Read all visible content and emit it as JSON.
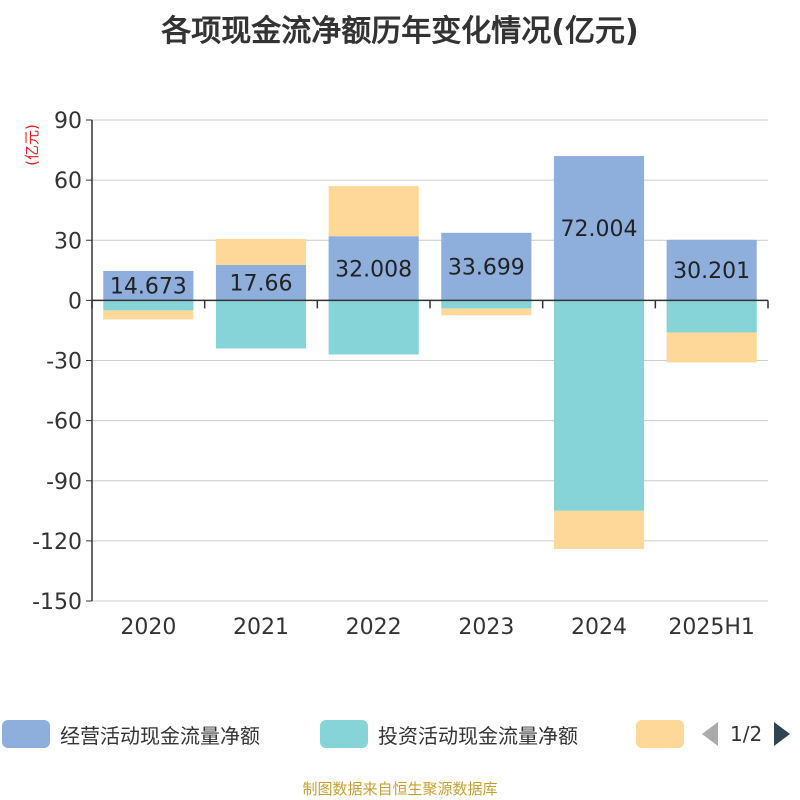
{
  "chart_data": {
    "type": "bar",
    "stacked": true,
    "title": "各项现金流净额历年变化情况(亿元)",
    "ylabel": "(亿元)",
    "categories": [
      "2020",
      "2021",
      "2022",
      "2023",
      "2024",
      "2025H1"
    ],
    "ylim": [
      -150,
      90
    ],
    "yticks": [
      90,
      60,
      30,
      0,
      -30,
      -60,
      -90,
      -120,
      -150
    ],
    "grid": true,
    "series": [
      {
        "name": "经营活动现金流量净额",
        "color": "#8eaedc",
        "values": [
          14.673,
          17.66,
          32.008,
          33.699,
          72.004,
          30.201
        ],
        "labels": [
          "14.673",
          "17.66",
          "32.008",
          "33.699",
          "72.004",
          "30.201"
        ]
      },
      {
        "name": "投资活动现金流量净额",
        "color": "#86d4d7",
        "values": [
          -5,
          -24,
          -27,
          -4,
          -105,
          -16
        ]
      },
      {
        "name": "",
        "color": "#fdd899",
        "values": [
          -4.5,
          13,
          25,
          -3.5,
          -19,
          -15
        ]
      }
    ]
  },
  "legend": {
    "item1": "经营活动现金流量净额",
    "item2": "投资活动现金流量净额",
    "page": "1/2"
  },
  "source": "制图数据来自恒生聚源数据库"
}
